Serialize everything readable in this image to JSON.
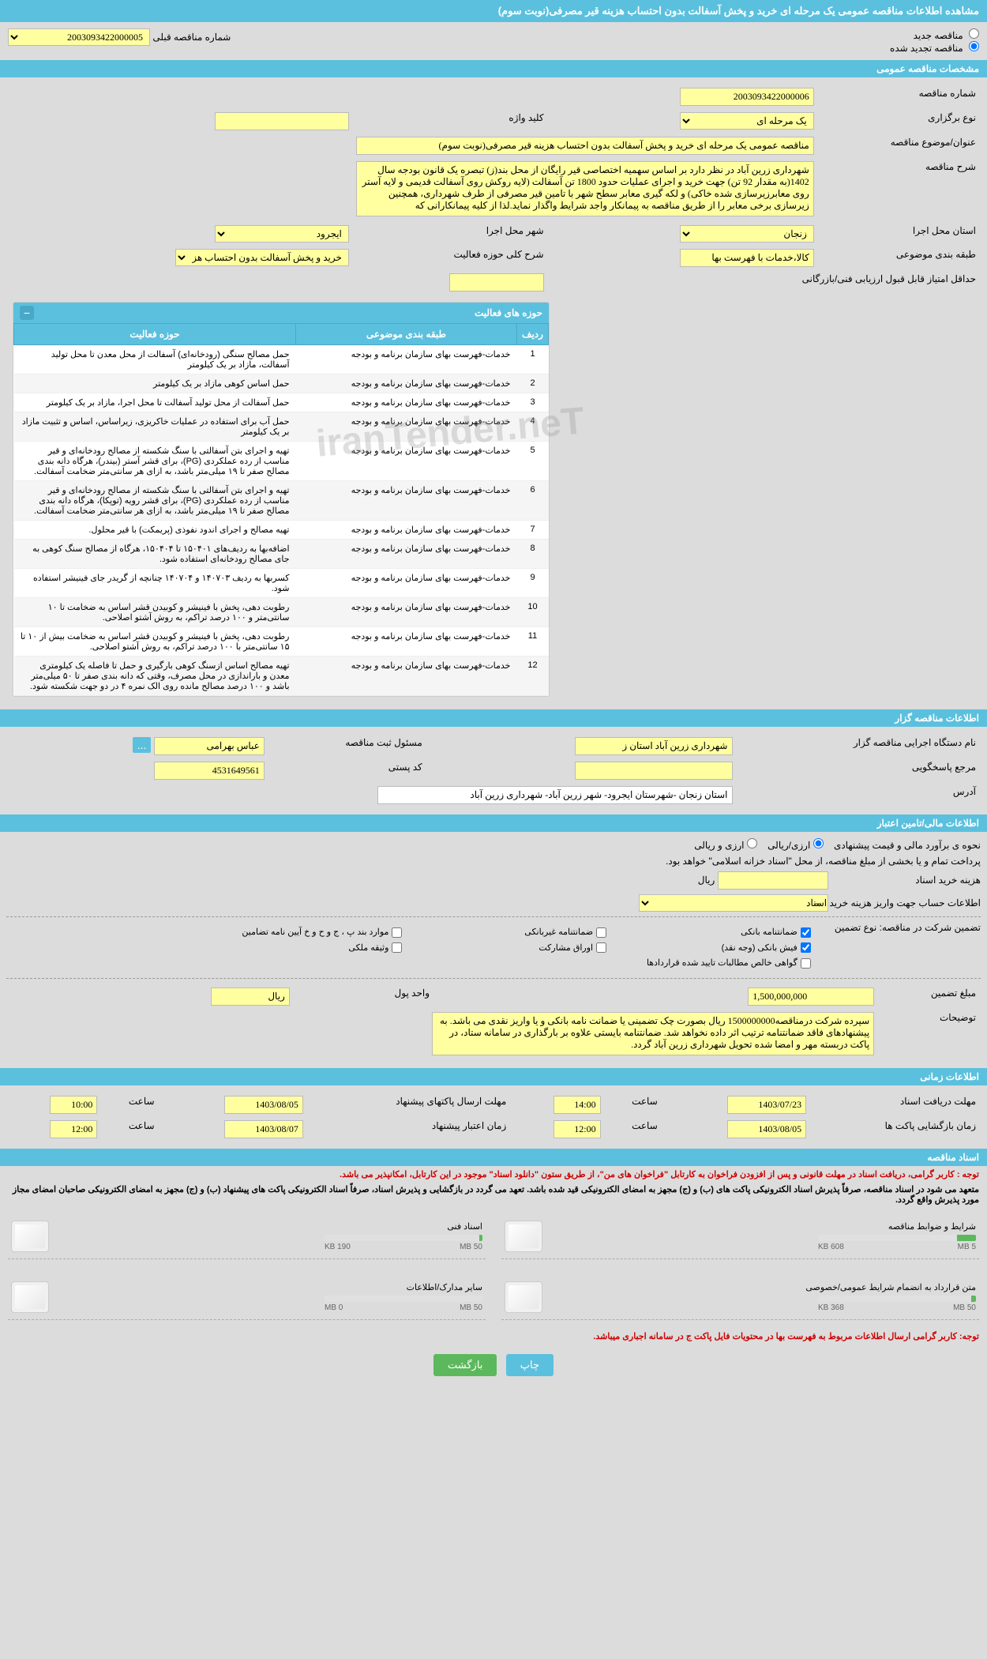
{
  "page_title": "مشاهده اطلاعات مناقصه عمومی یک مرحله ای خرید و پخش آسفالت بدون احتساب هزینه قیر مصرفی(نوبت سوم)",
  "radio": {
    "new_tender": "مناقصه جدید",
    "renewed_tender": "مناقصه تجدید شده",
    "prev_label": "شماره مناقصه قبلی",
    "prev_value": "2003093422000005"
  },
  "sections": {
    "general": "مشخصات مناقصه عمومی",
    "activities": "حوزه های فعالیت",
    "organizer": "اطلاعات مناقصه گزار",
    "financial": "اطلاعات مالی/تامین اعتبار",
    "timing": "اطلاعات زمانی",
    "documents": "اسناد مناقصه"
  },
  "general": {
    "tender_number_label": "شماره مناقصه",
    "tender_number": "2003093422000006",
    "type_label": "نوع برگزاری",
    "type_value": "یک مرحله ای",
    "keyword_label": "کلید واژه",
    "keyword_value": "",
    "subject_label": "عنوان/موضوع مناقصه",
    "subject_value": "مناقصه عمومی یک مرحله ای خرید و پخش آسفالت بدون احتساب هزینه قیر مصرفی(نوبت سوم)",
    "description_label": "شرح مناقصه",
    "description_value": "شهرداری زرین آباد در نظر دارد بر اساس سهمیه اختصاصی قیر رایگان از محل بند(ز) تبصره یک قانون بودجه سال 1402(به مقدار 92 تن) جهت خرید و اجرای عملیات حدود 1800 تن آسفالت (لایه روکش روی آسفالت قدیمی و لایه آستر روی معابرزیرسازی شده خاکی) و لکه گیری معابر سطح شهر با تامین قیر مصرفی از طرف شهرداری، همچنین زیرسازی برخی معابر را از طریق مناقصه به پیمانکار واجد شرایط واگذار نماید.لذا از کلیه پیمانکارانی که",
    "exec_province_label": "استان محل اجرا",
    "exec_province": "زنجان",
    "exec_city_label": "شهر محل اجرا",
    "exec_city": "ایجرود",
    "subject_category_label": "طبقه بندی موضوعی",
    "subject_category": "کالا،خدمات با فهرست بها",
    "activity_scope_label": "شرح کلی حوزه فعالیت",
    "activity_scope": "خرید و پخش  آسفالت بدون احتساب هزینه قیر مصرفی و",
    "min_score_label": "حداقل امتیاز قابل قبول ارزیابی فنی/بازرگانی",
    "min_score": ""
  },
  "activities_table": {
    "col_row": "ردیف",
    "col_category": "طبقه بندی موضوعی",
    "col_field": "حوزه فعالیت",
    "category_common": "خدمات-فهرست بهای سازمان برنامه و بودجه",
    "rows": [
      {
        "n": "1",
        "field": "حمل مصالح سنگی (رودخانه‌ای) آسفالت از محل معدن تا محل تولید آسفالت، مازاد بر یک کیلومتر"
      },
      {
        "n": "2",
        "field": "حمل اساس کوهی مازاد بر یک کیلومتر"
      },
      {
        "n": "3",
        "field": "حمل آسفالت از محل تولید آسفالت تا محل اجرا، مازاد بر یک کیلومتر"
      },
      {
        "n": "4",
        "field": "حمل آب برای استفاده در عملیات خاکریزی، زیراساس، اساس و تثبیت مازاد بر یک کیلومتر"
      },
      {
        "n": "5",
        "field": "تهیه و اجرای بتن آسفالتی با سنگ شکسته از مصالح رودخانه‌ای و قیر مناسب از رده عملکردی (PG)، برای قشر آستر (بیندر)، هرگاه دانه بندی مصالح صفر تا ۱۹ میلی‌متر باشد، به ازای هر سانتی‌متر ضخامت آسفالت."
      },
      {
        "n": "6",
        "field": "تهیه و اجرای بتن آسفالتی با سنگ شکسته از مصالح رودخانه‌ای و قیر مناسب از رده عملکردی (PG)، برای قشر رویه (توپکا)، هرگاه دانه بندی مصالح صفر تا ۱۹ میلی‌متر باشد، به ازای هر سانتی‌متر ضخامت آسفالت."
      },
      {
        "n": "7",
        "field": "تهیه مصالح و اجرای اندود نفوذی (پریمکت) با قیر محلول."
      },
      {
        "n": "8",
        "field": "اضافه‌بها به ردیف‌های ۱۵۰۴۰۱ تا ۱۵۰۴۰۴، هرگاه از مصالح سنگ کوهی به جای مصالح رودخانه‌ای استفاده شود."
      },
      {
        "n": "9",
        "field": "کسربها به ردیف ۱۴۰۷۰۳ و ۱۴۰۷۰۴ چنانچه از گریدر جای فینیشر استفاده شود."
      },
      {
        "n": "10",
        "field": "رطوبت دهی، پخش با فینیشر و کوبیدن قشر اساس به ضخامت تا ۱۰ سانتی‌متر و ۱۰۰ درصد تراکم، به روش آشتو اصلاحی."
      },
      {
        "n": "11",
        "field": "رطوبت دهی، پخش با فینیشر و کوبیدن قشر اساس به ضخامت بیش از ۱۰ تا ۱۵ سانتی‌متر با ۱۰۰ درصد تراکم، به روش آشتو اصلاحی."
      },
      {
        "n": "12",
        "field": "تهیه مصالح اساس ازسنگ کوهی بارگیری و حمل تا فاصله یک کیلومتری معدن و باراندازی در محل مصرف، وقتی که دانه بندی صفر تا ۵۰ میلی‌متر باشد و ۱۰۰ درصد مصالح مانده روی الک نمره ۴ در دو جهت شکسته شود."
      }
    ]
  },
  "organizer": {
    "name_label": "نام دستگاه اجرایی مناقصه گزار",
    "name_value": "شهرداری زرین آباد استان ز",
    "registrar_label": "مسئول ثبت مناقصه",
    "registrar_value": "عباس بهرامی",
    "response_label": "مرجع پاسخگویی",
    "response_value": "",
    "postal_label": "کد پستی",
    "postal_value": "4531649561",
    "address_label": "آدرس",
    "address_value": "استان زنجان -شهرستان ایجرود- شهر زرین آباد- شهرداری زرین آباد"
  },
  "financial": {
    "estimate_label": "نحوه ی برآورد مالی و قیمت پیشنهادی",
    "currency_rial": "ارزی/ریالی",
    "currency_both": "ارزی و ریالی",
    "payment_note": "پرداخت تمام و یا بخشی از مبلغ مناقصه، از محل \"اسناد خزانه اسلامی\" خواهد بود.",
    "doc_cost_label": "هزینه خرید اسناد",
    "doc_cost_value": "",
    "doc_cost_unit": "ریال",
    "account_label": "اطلاعات حساب جهت واریز هزینه خرید اسناد",
    "account_value": "--",
    "guarantee_type_label": "تضمین شرکت در مناقصه:   نوع تضمین",
    "guarantee_types": {
      "bank_guarantee": "ضمانتنامه بانکی",
      "non_bank_guarantee": "ضمانتنامه غیربانکی",
      "regulation_items": "موارد بند پ ، ج و ح و خ آیین نامه تضامین",
      "cash_receipt": "فیش بانکی (وجه نقد)",
      "partnership_bonds": "اوراق مشارکت",
      "property_pledge": "وثیقه ملکی",
      "net_claims": "گواهی خالص مطالبات تایید شده قراردادها"
    },
    "amount_label": "مبلغ تضمین",
    "amount_value": "1,500,000,000",
    "amount_unit_label": "واحد پول",
    "amount_unit": "ریال",
    "notes_label": "توضیحات",
    "notes_value": "سپرده شرکت درمناقصه1500000000 ریال بصورت چک تضمینی یا ضمانت نامه بانکی و یا واریز نقدی می باشد. به پیشنهادهای فاقد ضمانتنامه ترتیب اثر داده نخواهد شد. ضمانتنامه بایستی علاوه بر بارگذاری در سامانه ستاد، در پاکت دربسته مهر و امضا شده تحویل شهرداری زرین آباد گردد."
  },
  "timing": {
    "receive_docs_label": "مهلت دریافت اسناد",
    "receive_docs_date": "1403/07/23",
    "receive_docs_time_label": "ساعت",
    "receive_docs_time": "14:00",
    "submit_bids_label": "مهلت ارسال پاکتهای پیشنهاد",
    "submit_bids_date": "1403/08/05",
    "submit_bids_time": "10:00",
    "open_packets_label": "زمان بازگشایی پاکت ها",
    "open_packets_date": "1403/08/05",
    "open_packets_time": "12:00",
    "validity_label": "زمان اعتبار پیشنهاد",
    "validity_date": "1403/08/07",
    "validity_time": "12:00"
  },
  "documents": {
    "note1": "توجه : کاربر گرامی، دریافت اسناد در مهلت قانونی و پس از افزودن فراخوان به کارتابل \"فراخوان های من\"، از طریق ستون \"دانلود اسناد\" موجود در این کارتابل، امکانپذیر می باشد.",
    "note2": "متعهد می شود در اسناد مناقصه، صرفاً پذیرش اسناد الکترونیکی پاکت های (ب) و (ج) مجهز به امضای الکترونیکی قید شده باشد. تعهد می گردد در بازگشایی و پذیرش اسناد، صرفاً اسناد الکترونیکی پاکت های پیشنهاد (ب) و (ج) مجهز به امضای الکترونیکی صاحبان امضای مجاز مورد پذیرش واقع گردد.",
    "note3": "توجه: کاربر گرامی ارسال اطلاعات مربوط به فهرست بها در محتویات فایل پاکت ج در سامانه اجباری میباشد.",
    "files": [
      {
        "title": "شرایط و ضوابط مناقصه",
        "size": "608 KB",
        "max": "5 MB",
        "progress": 12
      },
      {
        "title": "اسناد فنی",
        "size": "190 KB",
        "max": "50 MB",
        "progress": 2
      },
      {
        "title": "متن قرارداد به انضمام شرایط عمومی/خصوصی",
        "size": "368 KB",
        "max": "50 MB",
        "progress": 3
      },
      {
        "title": "سایر مدارک/اطلاعات",
        "size": "0 MB",
        "max": "50 MB",
        "progress": 0
      }
    ]
  },
  "buttons": {
    "print": "چاپ",
    "back": "بازگشت"
  },
  "colors": {
    "header_bg": "#5bc0de",
    "yellow_bg": "#ffffa0",
    "page_bg": "#dcdcdc"
  }
}
